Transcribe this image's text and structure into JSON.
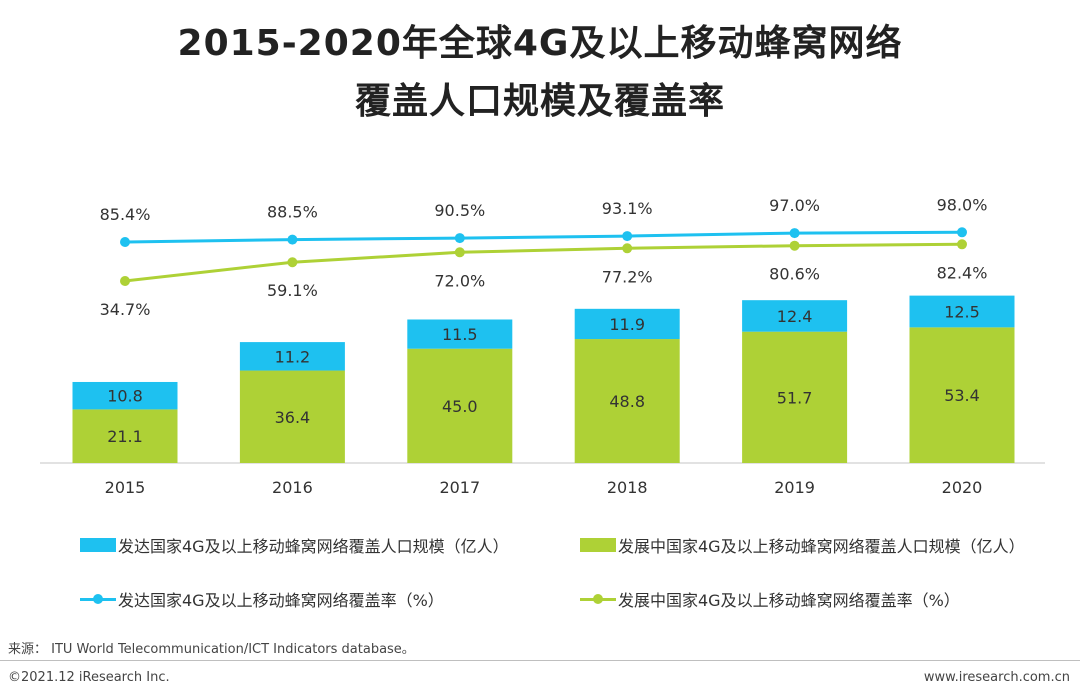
{
  "title": {
    "line1": "2015-2020年全球4G及以上移动蜂窝网络",
    "line2": "覆盖人口规模及覆盖率"
  },
  "colors": {
    "developed": "#1ec1f0",
    "developing": "#aed136",
    "axis": "#d9d9d9",
    "label_text": "#333333"
  },
  "chart_data": {
    "type": "bar",
    "stacked": true,
    "categories": [
      "2015",
      "2016",
      "2017",
      "2018",
      "2019",
      "2020"
    ],
    "series": [
      {
        "name": "发展中国家4G及以上移动蜂窝网络覆盖人口规模（亿人）",
        "kind": "bar",
        "color": "#aed136",
        "values": [
          21.1,
          36.4,
          45.0,
          48.8,
          51.7,
          53.4
        ],
        "labels": [
          "21.1",
          "36.4",
          "45.0",
          "48.8",
          "51.7",
          "53.4"
        ]
      },
      {
        "name": "发达国家4G及以上移动蜂窝网络覆盖人口规模（亿人）",
        "kind": "bar",
        "color": "#1ec1f0",
        "values": [
          10.8,
          11.2,
          11.5,
          11.9,
          12.4,
          12.5
        ],
        "labels": [
          "10.8",
          "11.2",
          "11.5",
          "11.9",
          "12.4",
          "12.5"
        ]
      },
      {
        "name": "发达国家4G及以上移动蜂窝网络覆盖率（%）",
        "kind": "line",
        "color": "#1ec1f0",
        "values": [
          85.4,
          88.5,
          90.5,
          93.1,
          97.0,
          98.0
        ],
        "labels": [
          "85.4%",
          "88.5%",
          "90.5%",
          "93.1%",
          "97.0%",
          "98.0%"
        ]
      },
      {
        "name": "发展中国家4G及以上移动蜂窝网络覆盖率（%）",
        "kind": "line",
        "color": "#aed136",
        "values": [
          34.7,
          59.1,
          72.0,
          77.2,
          80.6,
          82.4
        ],
        "labels": [
          "34.7%",
          "59.1%",
          "72.0%",
          "77.2%",
          "80.6%",
          "82.4%"
        ]
      }
    ],
    "ylim_bars": [
      0,
      100
    ],
    "ylim_lines": [
      0,
      100
    ],
    "grid": false,
    "legend_position": "bottom"
  },
  "legend": {
    "developed_bar": "发达国家4G及以上移动蜂窝网络覆盖人口规模（亿人）",
    "developing_bar": "发展中国家4G及以上移动蜂窝网络覆盖人口规模（亿人）",
    "developed_line": "发达国家4G及以上移动蜂窝网络覆盖率（%）",
    "developing_line": "发展中国家4G及以上移动蜂窝网络覆盖率（%）"
  },
  "footer": {
    "source": "来源： ITU World Telecommunication/ICT Indicators database。",
    "copyright": "©2021.12 iResearch Inc.",
    "website": "www.iresearch.com.cn"
  }
}
